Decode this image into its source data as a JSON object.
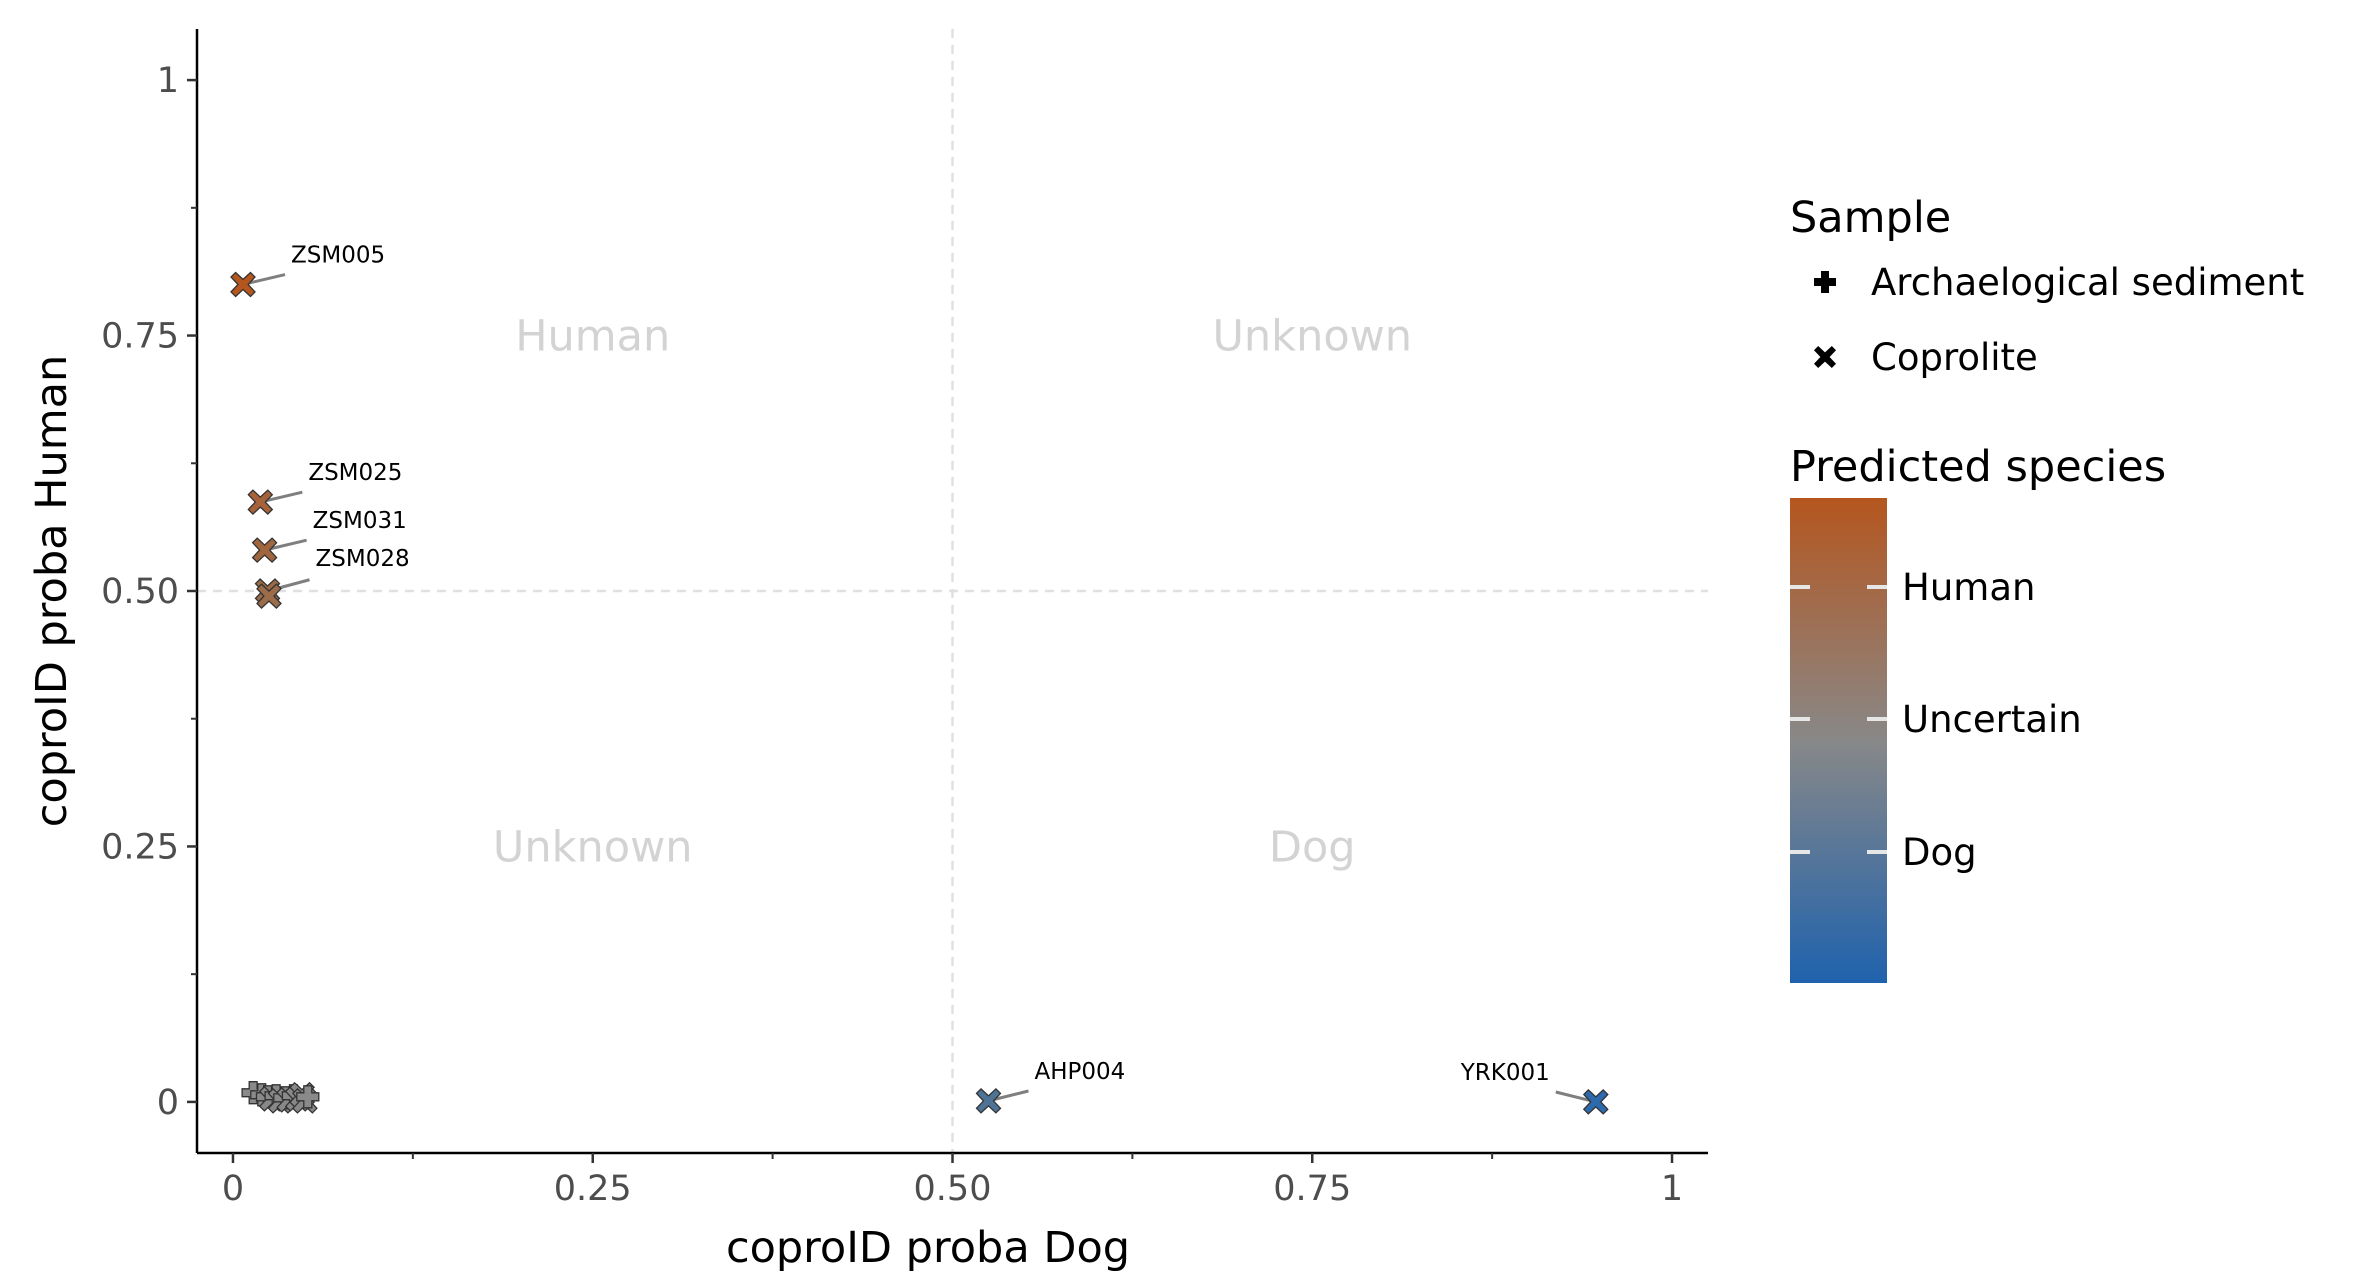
{
  "chart_data": {
    "type": "scatter",
    "xlabel": "coproID proba Dog",
    "ylabel": "coproID proba Human",
    "xlim": [
      -0.025,
      1.025
    ],
    "ylim": [
      -0.05,
      1.05
    ],
    "x_ticks": [
      0,
      0.25,
      0.5,
      0.75,
      1
    ],
    "x_tick_labels": [
      "0",
      "0.25",
      "0.50",
      "0.75",
      "1"
    ],
    "y_ticks": [
      0,
      0.25,
      0.5,
      0.75,
      1
    ],
    "y_tick_labels": [
      "0",
      "0.25",
      "0.50",
      "0.75",
      "1"
    ],
    "grid": false,
    "reference_lines": {
      "x": 0.5,
      "y": 0.5
    },
    "quadrant_labels": [
      {
        "text": "Human",
        "x": 0.25,
        "y": 0.75
      },
      {
        "text": "Unknown",
        "x": 0.75,
        "y": 0.75
      },
      {
        "text": "Unknown",
        "x": 0.25,
        "y": 0.25
      },
      {
        "text": "Dog",
        "x": 0.75,
        "y": 0.25
      }
    ],
    "points": [
      {
        "label": "ZSM005",
        "x": 0.007,
        "y": 0.8,
        "shape": "cross",
        "color": "#b5561e"
      },
      {
        "label": "ZSM025",
        "x": 0.019,
        "y": 0.587,
        "shape": "cross",
        "color": "#a6633a"
      },
      {
        "label": "ZSM031",
        "x": 0.022,
        "y": 0.54,
        "shape": "cross",
        "color": "#a0673f"
      },
      {
        "label": "ZSM028",
        "x": 0.024,
        "y": 0.5,
        "shape": "cross",
        "color": "#9c6b47"
      },
      {
        "label": "",
        "x": 0.025,
        "y": 0.495,
        "shape": "cross",
        "color": "#9a6c4a"
      },
      {
        "label": "",
        "x": 0.014,
        "y": 0.009,
        "shape": "plus",
        "color": "#8a8a8a"
      },
      {
        "label": "",
        "x": 0.02,
        "y": 0.007,
        "shape": "plus",
        "color": "#8a8a8a"
      },
      {
        "label": "",
        "x": 0.024,
        "y": 0.005,
        "shape": "plus",
        "color": "#8a8a8a"
      },
      {
        "label": "",
        "x": 0.027,
        "y": 0.003,
        "shape": "cross",
        "color": "#888888"
      },
      {
        "label": "",
        "x": 0.03,
        "y": 0.006,
        "shape": "plus",
        "color": "#8a8a8a"
      },
      {
        "label": "",
        "x": 0.033,
        "y": 0.001,
        "shape": "cross",
        "color": "#888888"
      },
      {
        "label": "",
        "x": 0.036,
        "y": 0.004,
        "shape": "plus",
        "color": "#8a8a8a"
      },
      {
        "label": "",
        "x": 0.039,
        "y": 0.002,
        "shape": "cross",
        "color": "#888888"
      },
      {
        "label": "",
        "x": 0.042,
        "y": 0.006,
        "shape": "plus",
        "color": "#8a8a8a"
      },
      {
        "label": "",
        "x": 0.045,
        "y": 0.003,
        "shape": "cross",
        "color": "#888888"
      },
      {
        "label": "",
        "x": 0.048,
        "y": 0.007,
        "shape": "cross",
        "color": "#888888"
      },
      {
        "label": "",
        "x": 0.05,
        "y": 0.001,
        "shape": "cross",
        "color": "#888888"
      },
      {
        "label": "",
        "x": 0.052,
        "y": 0.005,
        "shape": "plus",
        "color": "#8a8a8a"
      },
      {
        "label": "AHP004",
        "x": 0.525,
        "y": 0.001,
        "shape": "cross",
        "color": "#4f7396"
      },
      {
        "label": "YRK001",
        "x": 0.947,
        "y": 0.0,
        "shape": "cross",
        "color": "#2d6aab"
      }
    ],
    "legend": {
      "placement": "right",
      "shape": {
        "title": "Sample",
        "entries": [
          {
            "label": "Archaelogical sediment",
            "shape": "plus"
          },
          {
            "label": "Coprolite",
            "shape": "cross"
          }
        ]
      },
      "color": {
        "title": "Predicted species",
        "gradient": [
          "#b5561e",
          "#888888",
          "#1f62ad"
        ],
        "labels": [
          "Human",
          "Uncertain",
          "Dog"
        ]
      }
    }
  }
}
